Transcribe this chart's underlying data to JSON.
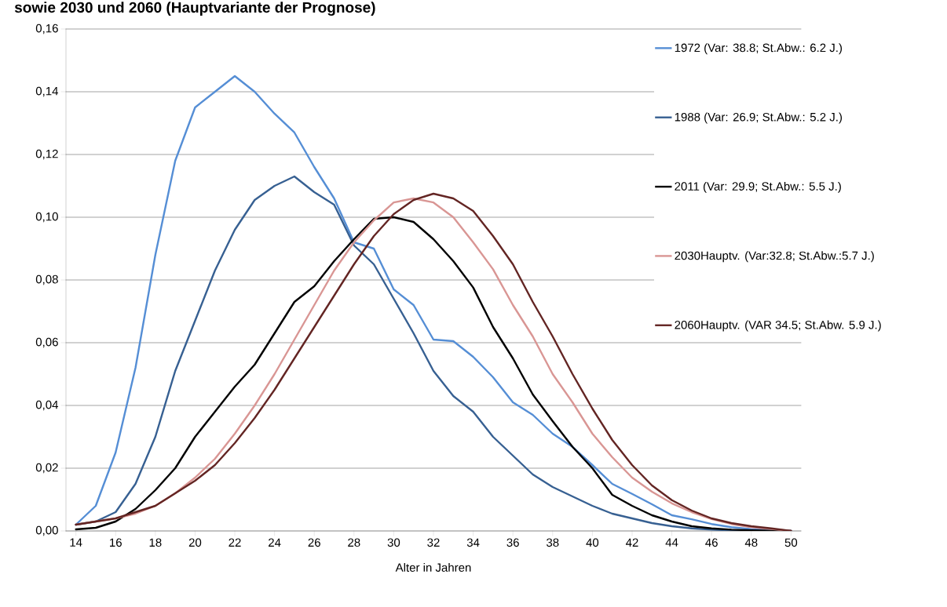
{
  "chart_data": {
    "type": "line",
    "title": "sowie 2030 und 2060 (Hauptvariante der Prognose)",
    "xlabel": "Alter in Jahren",
    "x": [
      14,
      15,
      16,
      17,
      18,
      19,
      20,
      21,
      22,
      23,
      24,
      25,
      26,
      27,
      28,
      29,
      30,
      31,
      32,
      33,
      34,
      35,
      36,
      37,
      38,
      39,
      40,
      41,
      42,
      43,
      44,
      45,
      46,
      47,
      48,
      49,
      50
    ],
    "xlim": [
      13.5,
      50.5
    ],
    "xticks": [
      14,
      16,
      18,
      20,
      22,
      24,
      26,
      28,
      30,
      32,
      34,
      36,
      38,
      40,
      42,
      44,
      46,
      48,
      50
    ],
    "ylim": [
      0,
      0.16
    ],
    "yticks": [
      {
        "value": 0,
        "label": "0,00"
      },
      {
        "value": 0.02,
        "label": "0,02"
      },
      {
        "value": 0.04,
        "label": "0,04"
      },
      {
        "value": 0.06,
        "label": "0,06"
      },
      {
        "value": 0.08,
        "label": "0,08"
      },
      {
        "value": 0.1,
        "label": "0,10"
      },
      {
        "value": 0.12,
        "label": "0,12"
      },
      {
        "value": 0.14,
        "label": "0,14"
      },
      {
        "value": 0.16,
        "label": "0,16"
      }
    ],
    "grid": "y",
    "legend": "right",
    "marker": "none",
    "line_style": "solid",
    "series": [
      {
        "name": "1972 (Var: 38.8; St.Abw.: 6.2 J.)",
        "color": "#558ed5",
        "values": [
          0.002,
          0.008,
          0.025,
          0.052,
          0.088,
          0.118,
          0.135,
          0.14,
          0.145,
          0.14,
          0.133,
          0.127,
          0.116,
          0.106,
          0.092,
          0.09,
          0.077,
          0.072,
          0.061,
          0.0605,
          0.0555,
          0.049,
          0.041,
          0.037,
          0.031,
          0.0268,
          0.021,
          0.015,
          0.0118,
          0.0085,
          0.005,
          0.0037,
          0.0022,
          0.0012,
          0.0006,
          0.0003,
          0
        ]
      },
      {
        "name": "1988 (Var: 26.9; St.Abw.: 5.2 J.)",
        "color": "#376092",
        "values": [
          0.002,
          0.003,
          0.006,
          0.015,
          0.03,
          0.051,
          0.067,
          0.083,
          0.096,
          0.1055,
          0.11,
          0.113,
          0.108,
          0.104,
          0.091,
          0.085,
          0.074,
          0.063,
          0.051,
          0.043,
          0.038,
          0.03,
          0.024,
          0.018,
          0.014,
          0.011,
          0.008,
          0.0055,
          0.004,
          0.0025,
          0.0015,
          0.0008,
          0.0004,
          0.0002,
          0.0001,
          0,
          0
        ]
      },
      {
        "name": "2011 (Var: 29.9; St.Abw.: 5.5 J.)",
        "color": "#000000",
        "values": [
          0.0005,
          0.001,
          0.003,
          0.007,
          0.013,
          0.02,
          0.03,
          0.038,
          0.046,
          0.053,
          0.063,
          0.073,
          0.078,
          0.086,
          0.093,
          0.0995,
          0.1,
          0.0985,
          0.093,
          0.086,
          0.0776,
          0.065,
          0.055,
          0.0435,
          0.035,
          0.0268,
          0.02,
          0.0115,
          0.008,
          0.005,
          0.003,
          0.0015,
          0.0008,
          0.0004,
          0.0002,
          0.0001,
          0
        ]
      },
      {
        "name": "2030Hauptv. (Var:32.8; St.Abw.:5.7 J.)",
        "color": "#d99694",
        "values": [
          0.002,
          0.003,
          0.004,
          0.0055,
          0.008,
          0.012,
          0.017,
          0.023,
          0.031,
          0.04,
          0.05,
          0.061,
          0.072,
          0.083,
          0.092,
          0.099,
          0.1047,
          0.106,
          0.1047,
          0.1,
          0.092,
          0.0834,
          0.072,
          0.062,
          0.05,
          0.041,
          0.031,
          0.0235,
          0.017,
          0.0125,
          0.0088,
          0.006,
          0.0038,
          0.0022,
          0.0012,
          0.0006,
          0
        ]
      },
      {
        "name": "2060Hauptv. (VAR 34.5; St.Abw. 5.9 J.)",
        "color": "#632523",
        "values": [
          0.002,
          0.003,
          0.004,
          0.006,
          0.008,
          0.012,
          0.016,
          0.021,
          0.028,
          0.036,
          0.045,
          0.055,
          0.065,
          0.075,
          0.085,
          0.094,
          0.101,
          0.1055,
          0.1075,
          0.106,
          0.102,
          0.094,
          0.085,
          0.073,
          0.062,
          0.05,
          0.039,
          0.029,
          0.021,
          0.0145,
          0.0098,
          0.0065,
          0.004,
          0.0025,
          0.0015,
          0.0008,
          0
        ]
      }
    ]
  }
}
